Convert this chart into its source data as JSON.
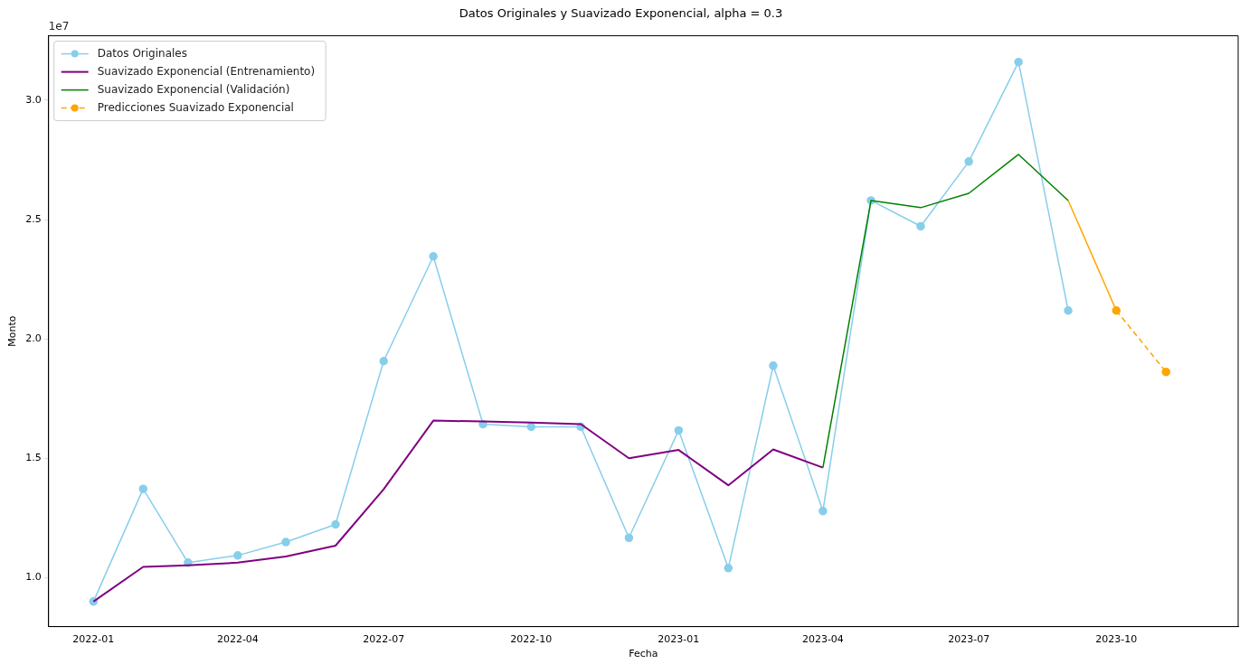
{
  "chart_data": {
    "type": "line",
    "title": "Datos Originales y Suavizado Exponencial, alpha = 0.3",
    "xlabel": "Fecha",
    "ylabel": "Monto",
    "annotations": [
      "1e7"
    ],
    "xlim": [
      "2021-12-04",
      "2023-12-16"
    ],
    "xticks": [
      {
        "value": "2022-01",
        "label": "2022-01"
      },
      {
        "value": "2022-04",
        "label": "2022-04"
      },
      {
        "value": "2022-07",
        "label": "2022-07"
      },
      {
        "value": "2022-10",
        "label": "2022-10"
      },
      {
        "value": "2023-01",
        "label": "2023-01"
      },
      {
        "value": "2023-04",
        "label": "2023-04"
      },
      {
        "value": "2023-07",
        "label": "2023-07"
      },
      {
        "value": "2023-10",
        "label": "2023-10"
      }
    ],
    "ylim": [
      0.795,
      3.27
    ],
    "yticks": [
      {
        "value": 1,
        "label": "1.0"
      },
      {
        "value": 1.5,
        "label": "1.5"
      },
      {
        "value": 2,
        "label": "2.0"
      },
      {
        "value": 2.5,
        "label": "2.5"
      },
      {
        "value": 3,
        "label": "3.0"
      }
    ],
    "grid": false,
    "legend": "top left",
    "series": [
      {
        "name": "Datos Originales",
        "color": "#87ceeb",
        "marker": "circle",
        "x": [
          "2022-01",
          "2022-02",
          "2022-03",
          "2022-04",
          "2022-05",
          "2022-06",
          "2022-07",
          "2022-08",
          "2022-09",
          "2022-10",
          "2022-11",
          "2022-12",
          "2023-01",
          "2023-02",
          "2023-03",
          "2023-04",
          "2023-05",
          "2023-06",
          "2023-07",
          "2023-08",
          "2023-09"
        ],
        "values": [
          0.9,
          1.372,
          1.063,
          1.093,
          1.149,
          1.223,
          1.907,
          2.346,
          1.643,
          1.632,
          1.632,
          1.167,
          1.617,
          1.04,
          1.888,
          1.279,
          2.58,
          2.472,
          2.743,
          3.16,
          2.119
        ]
      },
      {
        "name": "Suavizado Exponencial (Entrenamiento)",
        "color": "#800080",
        "x": [
          "2022-01",
          "2022-02",
          "2022-03",
          "2022-04",
          "2022-05",
          "2022-06",
          "2022-07",
          "2022-08",
          "2022-09",
          "2022-10",
          "2022-11",
          "2022-12",
          "2023-01",
          "2023-02",
          "2023-03",
          "2023-04"
        ],
        "values": [
          0.9,
          1.045,
          1.052,
          1.063,
          1.089,
          1.134,
          1.37,
          1.658,
          1.654,
          1.65,
          1.643,
          1.5,
          1.535,
          1.387,
          1.537,
          1.461
        ]
      },
      {
        "name": "Suavizado Exponencial (Validación)",
        "color": "#008000",
        "x": [
          "2023-04",
          "2023-05",
          "2023-06",
          "2023-07",
          "2023-08",
          "2023-09"
        ],
        "values": [
          1.461,
          2.58,
          2.55,
          2.61,
          2.773,
          2.58
        ]
      },
      {
        "color": "#ffa500",
        "x": [
          "2023-09",
          "2023-10"
        ],
        "values": [
          2.58,
          2.119
        ]
      },
      {
        "name": "Predicciones Suavizado Exponencial",
        "color": "#ffa500",
        "marker": "circle",
        "line_style": "dashed",
        "x": [
          "2023-10",
          "2023-11"
        ],
        "values": [
          2.119,
          1.862
        ]
      }
    ]
  }
}
